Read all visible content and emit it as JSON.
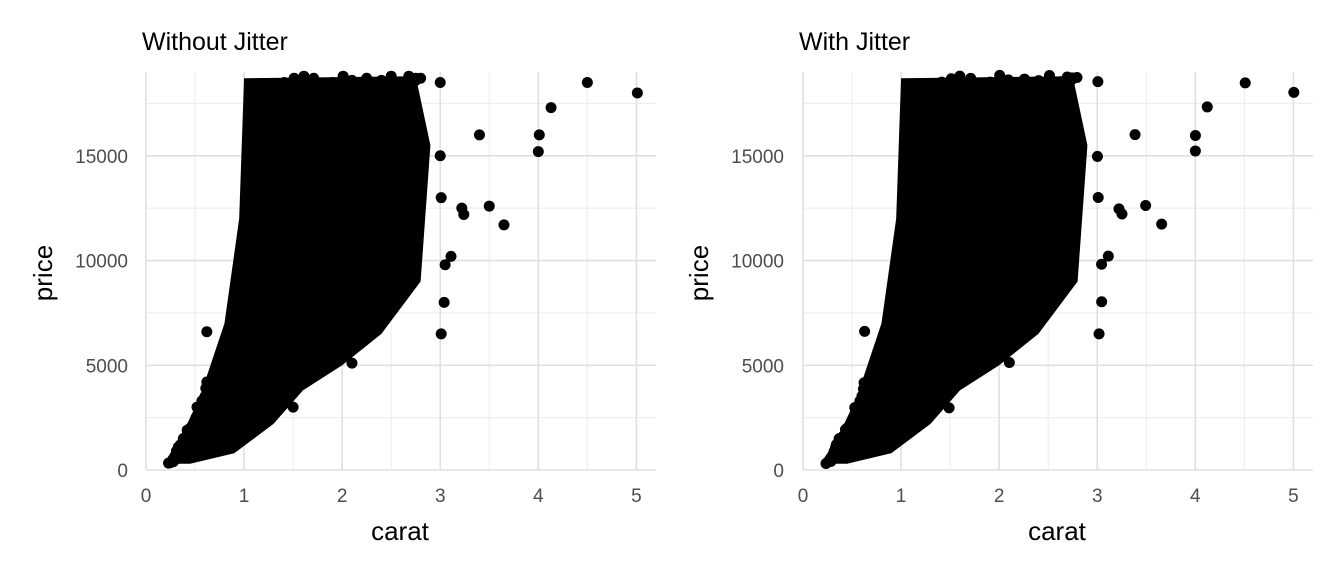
{
  "chart_data": [
    {
      "type": "scatter",
      "title": "Without Jitter",
      "xlabel": "carat",
      "ylabel": "price",
      "xlim": [
        0,
        5.2
      ],
      "ylim": [
        0,
        19000
      ],
      "xticks": [
        0,
        1,
        2,
        3,
        4,
        5
      ],
      "xtick_labels": [
        "0",
        "1",
        "2",
        "3",
        "4",
        "5"
      ],
      "yticks": [
        0,
        5000,
        10000,
        15000
      ],
      "ytick_labels": [
        "0",
        "5000",
        "10000",
        "15000"
      ],
      "grid": true,
      "point_color": "#000000",
      "series": [
        {
          "x": [
            0.23,
            0.25,
            0.28,
            0.3,
            0.3,
            0.31,
            0.32,
            0.33,
            0.35,
            0.36,
            0.38,
            0.4,
            0.41,
            0.42,
            0.45,
            0.46,
            0.5,
            0.5,
            0.51,
            0.52,
            0.55,
            0.57,
            0.6,
            0.61,
            0.62,
            0.7,
            0.7,
            0.71,
            0.72,
            0.73,
            0.75,
            0.8,
            0.81,
            0.85,
            0.9,
            0.9,
            0.91,
            0.92,
            0.95,
            1.0,
            1.0,
            1.0,
            1.01,
            1.01,
            1.02,
            1.03,
            1.05,
            1.07,
            1.1,
            1.11,
            1.13,
            1.15,
            1.2,
            1.2,
            1.21,
            1.22,
            1.25,
            1.27,
            1.3,
            1.31,
            1.33,
            1.35,
            1.4,
            1.41,
            1.43,
            1.5,
            1.5,
            1.51,
            1.52,
            1.54,
            1.55,
            1.6,
            1.61,
            1.65,
            1.7,
            1.7,
            1.71,
            1.74,
            1.75,
            1.8,
            1.82,
            1.85,
            1.9,
            1.91,
            1.95,
            2.0,
            2.0,
            2.01,
            2.02,
            2.05,
            2.07,
            2.1,
            2.12,
            2.15,
            2.2,
            2.22,
            2.25,
            2.3,
            2.32,
            2.35,
            2.4,
            2.42,
            2.45,
            2.5,
            2.51,
            2.55,
            2.6,
            2.63,
            2.68,
            2.72,
            2.75,
            2.8,
            3.0,
            3.01,
            3.04,
            3.05,
            3.11,
            3.22,
            3.24,
            3.4,
            3.5,
            3.65,
            4.0,
            4.01,
            4.13,
            4.5,
            5.01,
            0.62,
            1.1,
            1.4,
            1.7,
            1.5,
            1.25,
            0.95,
            2.0,
            2.1,
            2.5,
            2.75,
            3.01,
            3.0,
            2.2,
            1.8,
            2.4,
            2.6,
            1.05,
            1.6
          ],
          "y": [
            326,
            350,
            400,
            500,
            700,
            900,
            800,
            1100,
            1200,
            1000,
            1500,
            1300,
            1600,
            1900,
            2000,
            1800,
            2300,
            1500,
            2500,
            3000,
            2700,
            3300,
            3500,
            3900,
            4200,
            3000,
            2600,
            4500,
            3600,
            4000,
            5000,
            4400,
            5300,
            5800,
            6000,
            4300,
            5000,
            6500,
            5200,
            4500,
            6500,
            9000,
            5500,
            11000,
            7500,
            4700,
            6800,
            8500,
            5600,
            12500,
            8000,
            7000,
            6000,
            14500,
            9000,
            11500,
            10000,
            7200,
            12000,
            16000,
            9500,
            8400,
            11000,
            18500,
            15000,
            7500,
            13500,
            18700,
            9800,
            10700,
            8800,
            12000,
            18800,
            9600,
            8500,
            14000,
            18700,
            11000,
            15800,
            9000,
            17500,
            12500,
            18500,
            10500,
            13000,
            8000,
            14000,
            18800,
            10800,
            16000,
            9200,
            18600,
            12000,
            17500,
            8800,
            14500,
            18700,
            10000,
            16000,
            12500,
            18600,
            9500,
            15500,
            18800,
            10000,
            17000,
            12500,
            18500,
            18800,
            14000,
            18600,
            18700,
            18500,
            6500,
            8000,
            9800,
            10200,
            12500,
            12200,
            16000,
            12600,
            11700,
            15200,
            16000,
            17300,
            18500,
            18000,
            6600,
            8900,
            5900,
            4700,
            3000,
            11000,
            6200,
            6300,
            5100,
            8700,
            18700,
            13000,
            15000,
            17000,
            18000,
            16000,
            14000,
            14000,
            16500
          ]
        }
      ]
    },
    {
      "type": "scatter",
      "title": "With Jitter",
      "xlabel": "carat",
      "ylabel": "price",
      "xlim": [
        0,
        5.2
      ],
      "ylim": [
        0,
        19000
      ],
      "xticks": [
        0,
        1,
        2,
        3,
        4,
        5
      ],
      "xtick_labels": [
        "0",
        "1",
        "2",
        "3",
        "4",
        "5"
      ],
      "yticks": [
        0,
        5000,
        10000,
        15000
      ],
      "ytick_labels": [
        "0",
        "5000",
        "10000",
        "15000"
      ],
      "grid": true,
      "point_color": "#000000",
      "series": [
        {
          "x": [
            0.23,
            0.25,
            0.28,
            0.3,
            0.3,
            0.31,
            0.32,
            0.33,
            0.35,
            0.36,
            0.38,
            0.4,
            0.41,
            0.42,
            0.45,
            0.46,
            0.5,
            0.5,
            0.51,
            0.52,
            0.55,
            0.57,
            0.6,
            0.61,
            0.62,
            0.7,
            0.7,
            0.71,
            0.72,
            0.73,
            0.75,
            0.8,
            0.81,
            0.85,
            0.9,
            0.9,
            0.91,
            0.92,
            0.95,
            1.0,
            1.0,
            1.0,
            1.01,
            1.01,
            1.02,
            1.03,
            1.05,
            1.07,
            1.1,
            1.11,
            1.13,
            1.15,
            1.2,
            1.2,
            1.21,
            1.22,
            1.25,
            1.27,
            1.3,
            1.31,
            1.33,
            1.35,
            1.4,
            1.41,
            1.43,
            1.5,
            1.5,
            1.51,
            1.52,
            1.54,
            1.55,
            1.6,
            1.61,
            1.65,
            1.7,
            1.7,
            1.71,
            1.74,
            1.75,
            1.8,
            1.82,
            1.85,
            1.9,
            1.91,
            1.95,
            2.0,
            2.0,
            2.01,
            2.02,
            2.05,
            2.07,
            2.1,
            2.12,
            2.15,
            2.2,
            2.22,
            2.25,
            2.3,
            2.32,
            2.35,
            2.4,
            2.42,
            2.45,
            2.5,
            2.51,
            2.55,
            2.6,
            2.63,
            2.68,
            2.72,
            2.75,
            2.8,
            3.0,
            3.01,
            3.04,
            3.05,
            3.11,
            3.22,
            3.24,
            3.4,
            3.5,
            3.65,
            4.0,
            4.01,
            4.13,
            4.5,
            5.01,
            0.62,
            1.1,
            1.4,
            1.7,
            1.5,
            1.25,
            0.95,
            2.0,
            2.1,
            2.5,
            2.75,
            3.01,
            3.0,
            2.2,
            1.8,
            2.4,
            2.6,
            1.05,
            1.6
          ],
          "y": [
            326,
            350,
            400,
            500,
            700,
            900,
            800,
            1100,
            1200,
            1000,
            1500,
            1300,
            1600,
            1900,
            2000,
            1800,
            2300,
            1500,
            2500,
            3000,
            2700,
            3300,
            3500,
            3900,
            4200,
            3000,
            2600,
            4500,
            3600,
            4000,
            5000,
            4400,
            5300,
            5800,
            6000,
            4300,
            5000,
            6500,
            5200,
            4500,
            6500,
            9000,
            5500,
            11000,
            7500,
            4700,
            6800,
            8500,
            5600,
            12500,
            8000,
            7000,
            6000,
            14500,
            9000,
            11500,
            10000,
            7200,
            12000,
            16000,
            9500,
            8400,
            11000,
            18500,
            15000,
            7500,
            13500,
            18700,
            9800,
            10700,
            8800,
            12000,
            18800,
            9600,
            8500,
            14000,
            18700,
            11000,
            15800,
            9000,
            17500,
            12500,
            18500,
            10500,
            13000,
            8000,
            14000,
            18800,
            10800,
            16000,
            9200,
            18600,
            12000,
            17500,
            8800,
            14500,
            18700,
            10000,
            16000,
            12500,
            18600,
            9500,
            15500,
            18800,
            10000,
            17000,
            12500,
            18500,
            18800,
            14000,
            18600,
            18700,
            18500,
            6500,
            8000,
            9800,
            10200,
            12500,
            12200,
            16000,
            12600,
            11700,
            15200,
            16000,
            17300,
            18500,
            18000,
            6600,
            8900,
            5900,
            4700,
            3000,
            11000,
            6200,
            6300,
            5100,
            8700,
            18700,
            13000,
            15000,
            17000,
            18000,
            16000,
            14000,
            14000,
            16500
          ]
        }
      ]
    }
  ]
}
